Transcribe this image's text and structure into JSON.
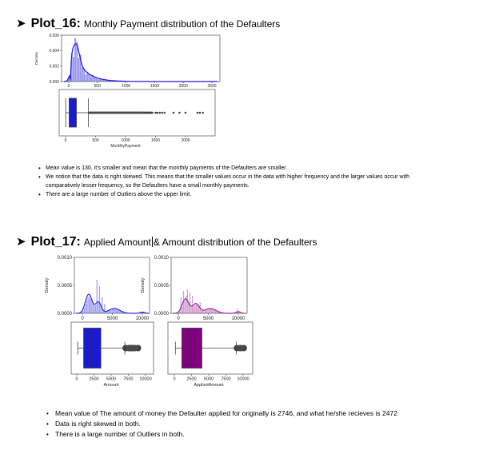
{
  "plot16": {
    "number": "Plot_16:",
    "title": "Monthly Payment distribution of the Defaulters",
    "bullets": [
      "Mean value is 130, it's smaller and mean that the monthly payments of the Defaulters are smaller.",
      "We notice that the data is right skewed. This means that the smaller values occur in the data with higher frequency and the larger values occur with",
      "comparatively lesser frequency, so the Defaulters have a small monthly payments.",
      "There are a large number of Outliers above the upper limit."
    ]
  },
  "plot17": {
    "number": "Plot_17:",
    "title_part1": "Applied Amount",
    "title_part2": "& Amount distribution of the Defaulters",
    "bullets": [
      "Mean value of The amount of money the Defaulter applied for originally is 2746, and what he/she recieves is 2472",
      "Data is right skewed in both.",
      "There is a large number of Outliers in both."
    ]
  },
  "chart_data": [
    {
      "type": "area",
      "chart": "density",
      "ylabel": "Density",
      "xlim": [
        -150,
        2500
      ],
      "ylim": [
        0,
        0.006
      ],
      "yticks": [
        "0.000",
        "0.002",
        "0.004",
        "0.006"
      ],
      "xticks": [
        "0",
        "500",
        "1000",
        "1500",
        "2000",
        "2500"
      ],
      "color": "#1a1adb"
    },
    {
      "type": "box",
      "xlabel": "MonthlyPayment",
      "xticks": [
        "0",
        "500",
        "1000",
        "1500",
        "2000"
      ],
      "q1": 60,
      "median": 100,
      "q3": 180,
      "whisker_low": 2,
      "whisker_high": 380,
      "color": "#1a1ad6"
    },
    {
      "type": "area",
      "chart": "density",
      "ylabel": "Density",
      "xlim": [
        -1000,
        11000
      ],
      "ylim": [
        0,
        0.001
      ],
      "yticks": [
        "0.0000",
        "0.0005",
        "0.0010"
      ],
      "xticks": [
        "0",
        "5000",
        "10000"
      ],
      "color": "#3030e0"
    },
    {
      "type": "area",
      "chart": "density",
      "ylabel": "Density",
      "xlim": [
        -1000,
        11000
      ],
      "ylim": [
        0,
        0.001
      ],
      "yticks": [
        "0.0000",
        "0.0005",
        "0.0010"
      ],
      "xticks": [
        "0",
        "5000",
        "10000"
      ],
      "color": "#9a2a9a"
    },
    {
      "type": "box",
      "xlabel": "Amount",
      "xticks": [
        "0",
        "2500",
        "5000",
        "7500",
        "10000"
      ],
      "q1": 1000,
      "median": 2000,
      "q3": 3500,
      "whisker_low": 150,
      "whisker_high": 7000,
      "color": "#1a1ad6"
    },
    {
      "type": "box",
      "xlabel": "AppliedAmount",
      "xticks": [
        "0",
        "2500",
        "5000",
        "7500",
        "10000"
      ],
      "q1": 1100,
      "median": 2100,
      "q3": 4000,
      "whisker_low": 150,
      "whisker_high": 9000,
      "color": "#800080"
    }
  ]
}
